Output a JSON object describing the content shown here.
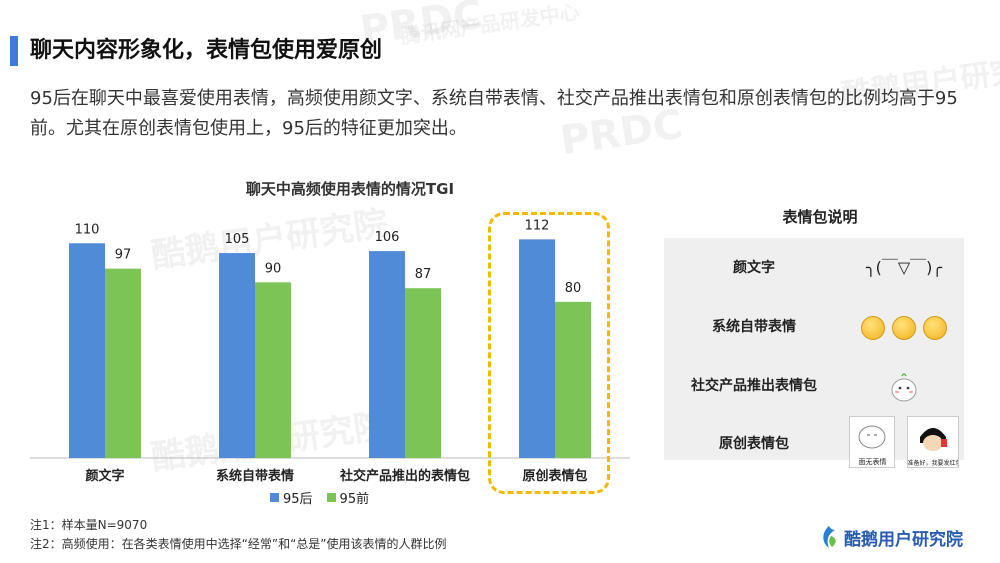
{
  "header": {
    "title": "聊天内容形象化，表情包使用爱原创",
    "description": "95后在聊天中最喜爱使用表情，高频使用颜文字、系统自带表情、社交产品推出表情包和原创表情包的比例均高于95前。尤其在原创表情包使用上，95后的特征更加突出。"
  },
  "chart_data": {
    "type": "bar",
    "title": "聊天中高频使用表情的情况TGI",
    "categories": [
      "颜文字",
      "系统自带表情",
      "社交产品推出的表情包",
      "原创表情包"
    ],
    "series": [
      {
        "name": "95后",
        "values": [
          110,
          105,
          106,
          112
        ],
        "color": "#4f8bd6"
      },
      {
        "name": "95前",
        "values": [
          97,
          90,
          87,
          80
        ],
        "color": "#7cc456"
      }
    ],
    "ylim": [
      0,
      125
    ],
    "grid": false,
    "legend": "bottom",
    "highlight_category": "原创表情包",
    "highlight_color": "#f5b800"
  },
  "panel": {
    "title": "表情包说明",
    "rows": [
      {
        "label": "颜文字",
        "visual": "╮(￣▽￣)╭",
        "kind": "kaomoji"
      },
      {
        "label": "系统自带表情",
        "visual": "system-emoji-icons",
        "kind": "emoji"
      },
      {
        "label": "社交产品推出表情包",
        "visual": "cartoon-sticker",
        "kind": "sticker"
      },
      {
        "label": "原创表情包",
        "visual": "original-stickers",
        "kind": "original"
      }
    ],
    "sticker_captions": [
      "面无表情",
      "准备好，我要发红包了"
    ]
  },
  "notes": [
    "注1：样本量N=9070",
    "注2：高频使用：在各类表情使用中选择“经常”和“总是”使用该表情的人群比例"
  ],
  "logo": {
    "text": "酷鹅用户研究院"
  },
  "watermark": {
    "text": "酷鹅用户研究院",
    "brand": "PRDC",
    "sub": "腾讯网产品研发中心"
  }
}
